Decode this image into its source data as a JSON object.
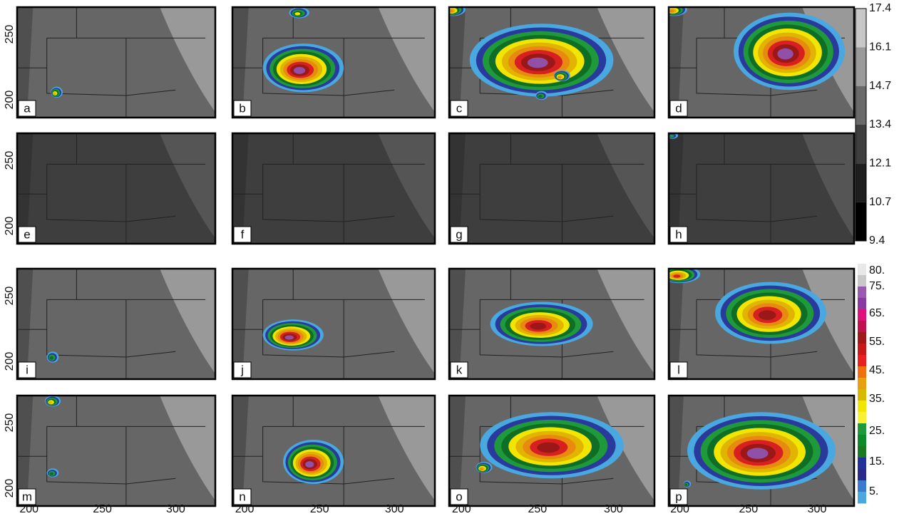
{
  "panels": [
    {
      "label": "a"
    },
    {
      "label": "b"
    },
    {
      "label": "c"
    },
    {
      "label": "d"
    },
    {
      "label": "e"
    },
    {
      "label": "f"
    },
    {
      "label": "g"
    },
    {
      "label": "h"
    },
    {
      "label": "i"
    },
    {
      "label": "j"
    },
    {
      "label": "k"
    },
    {
      "label": "l"
    },
    {
      "label": "m"
    },
    {
      "label": "n"
    },
    {
      "label": "o"
    },
    {
      "label": "p"
    }
  ],
  "y_ticks": [
    "250",
    "200"
  ],
  "x_ticks": [
    "200",
    "250",
    "300"
  ],
  "colorbar_top": {
    "labels": [
      "17.4",
      "16.1",
      "14.7",
      "13.4",
      "12.1",
      "10.7",
      "9.4"
    ]
  },
  "colorbar_bottom": {
    "labels": [
      "80.",
      "75.",
      "65.",
      "55.",
      "45.",
      "35.",
      "25.",
      "15.",
      "5."
    ]
  }
}
